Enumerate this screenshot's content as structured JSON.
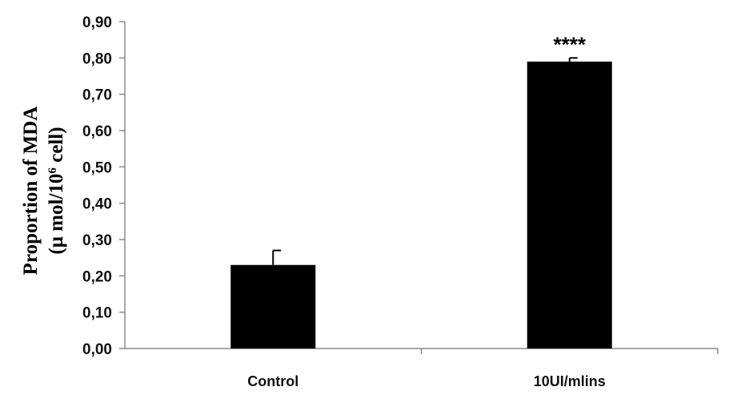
{
  "chart_data": {
    "type": "bar",
    "categories": [
      "Control",
      "10UI/mlins"
    ],
    "values": [
      0.23,
      0.79
    ],
    "errors": [
      0.04,
      0.01
    ],
    "annotations": [
      "",
      "****"
    ],
    "ylabel_line1": "Proportion of MDA",
    "ylabel_line2_prefix": "(μ mol/10",
    "ylabel_line2_sup": "6",
    "ylabel_line2_suffix": " cell)",
    "ylim": [
      0,
      0.9
    ],
    "yticks": [
      "0,00",
      "0,10",
      "0,20",
      "0,30",
      "0,40",
      "0,50",
      "0,60",
      "0,70",
      "0,80",
      "0,90"
    ],
    "grid": false,
    "bar_color": "#000000"
  }
}
